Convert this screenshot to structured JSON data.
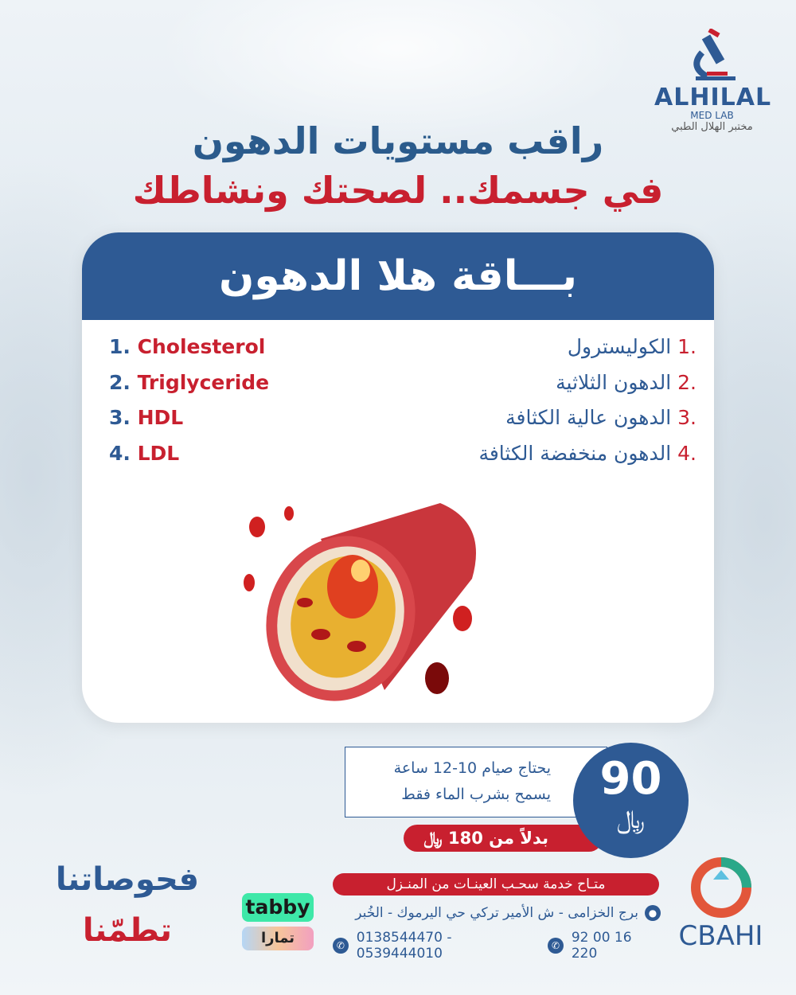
{
  "logo": {
    "name": "ALHILAL",
    "sub": "MED LAB",
    "arabic": "مختبر الهلال الطبي"
  },
  "headline": {
    "line1": "راقب مستويات الدهون",
    "line2": "في جسمك.. لصحتك ونشاطك"
  },
  "package": {
    "title": "بـــاقة هلا الدهون",
    "tests_en": [
      {
        "n": "1.",
        "label": "Cholesterol"
      },
      {
        "n": "2.",
        "label": "Triglyceride"
      },
      {
        "n": "3.",
        "label": "HDL"
      },
      {
        "n": "4.",
        "label": "LDL"
      }
    ],
    "tests_ar": [
      {
        "n": ".1",
        "label": "الكوليسترول"
      },
      {
        "n": ".2",
        "label": "الدهون الثلاثية"
      },
      {
        "n": ".3",
        "label": "الدهون عالية الكثافة"
      },
      {
        "n": ".4",
        "label": "الدهون منخفضة الكثافة"
      }
    ]
  },
  "price": {
    "value": "90",
    "currency": "﷼",
    "old": "بدلاً من 180 ﷼",
    "note1": "يحتاج صيام 10-12 ساعة",
    "note2": "يسمح بشرب الماء فقط"
  },
  "service": "متـاح خدمة سحـب العينـات من المنـزل",
  "address": "برج الخزامى - ش الأمير تركي حي اليرموك - الخُبر",
  "phone": "92 00 16 220",
  "whatsapp": "0138544470 - 0539444010",
  "slogan": {
    "line1": "فحوصاتنا",
    "line2": "تطمّنا"
  },
  "payment": {
    "tabby": "tabby",
    "tamara": "تمارا"
  },
  "accreditation": "CBAHI",
  "colors": {
    "blue": "#2e5a94",
    "red": "#c8202f"
  }
}
